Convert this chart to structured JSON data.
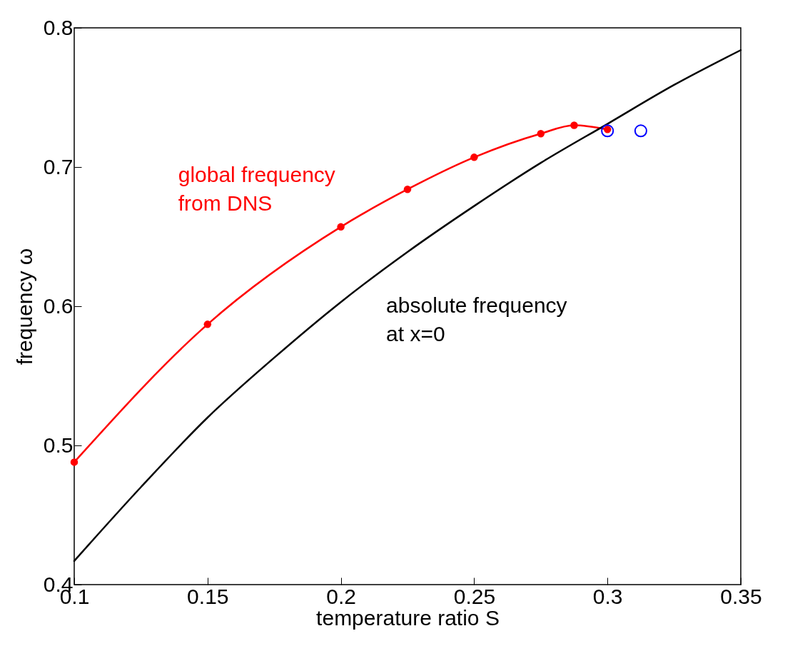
{
  "chart_data": {
    "type": "line",
    "xlabel": "temperature ratio S",
    "ylabel": "frequency ω",
    "xlim": [
      0.1,
      0.35
    ],
    "xticks": [
      0.1,
      0.15,
      0.2,
      0.25,
      0.3,
      0.35
    ],
    "ylim": [
      0.4,
      0.8
    ],
    "yticks": [
      0.4,
      0.5,
      0.6,
      0.7,
      0.8
    ],
    "grid": false,
    "series": [
      {
        "name": "global frequency\nfrom DNS",
        "color": "#ff0000",
        "marker": "circle",
        "x": [
          0.1,
          0.15,
          0.2,
          0.225,
          0.25,
          0.275,
          0.2875,
          0.3
        ],
        "values": [
          0.488,
          0.587,
          0.657,
          0.684,
          0.707,
          0.724,
          0.73,
          0.727
        ]
      },
      {
        "name": "absolute frequency\nat x=0",
        "color": "#000000",
        "marker": "none",
        "x": [
          0.1,
          0.125,
          0.15,
          0.175,
          0.2,
          0.225,
          0.25,
          0.275,
          0.3,
          0.325,
          0.35
        ],
        "values": [
          0.417,
          0.47,
          0.52,
          0.563,
          0.603,
          0.639,
          0.672,
          0.703,
          0.731,
          0.759,
          0.784
        ]
      },
      {
        "type": "scatter",
        "color": "#0000ff",
        "marker": "circle",
        "x": [
          0.3,
          0.3125
        ],
        "values": [
          0.726,
          0.726
        ]
      }
    ]
  }
}
